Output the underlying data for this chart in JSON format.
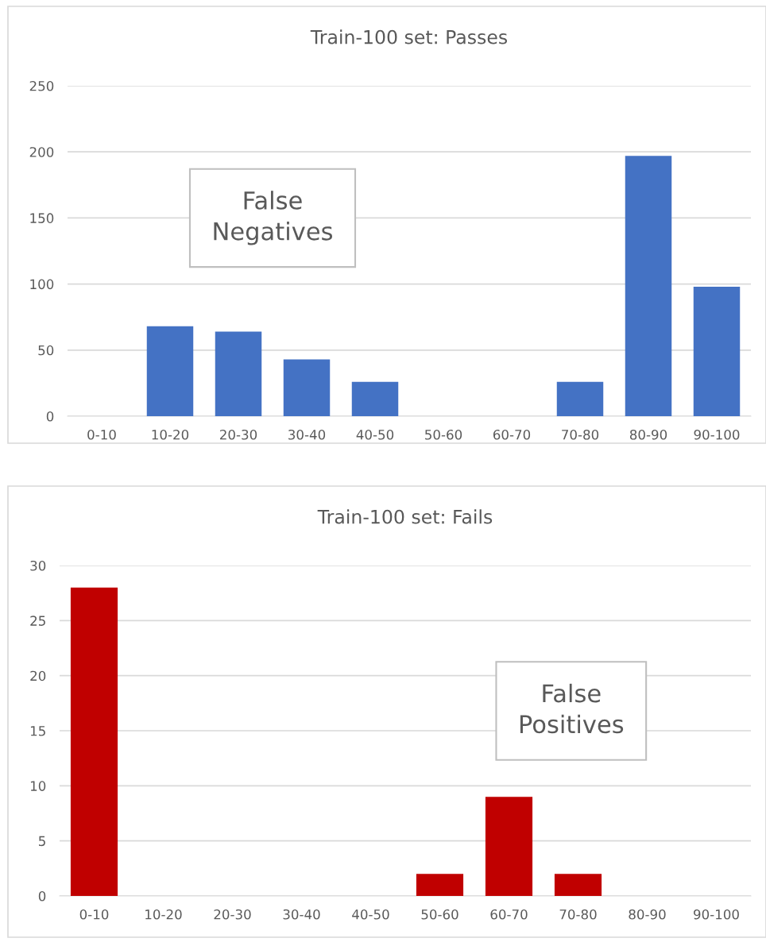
{
  "chart_data": [
    {
      "type": "bar",
      "title": "Train-100 set: Passes",
      "categories": [
        "0-10",
        "10-20",
        "20-30",
        "30-40",
        "40-50",
        "50-60",
        "60-70",
        "70-80",
        "80-90",
        "90-100"
      ],
      "values": [
        0,
        68,
        64,
        43,
        26,
        0,
        0,
        26,
        197,
        98
      ],
      "color": "#4472c4",
      "ylim": [
        0,
        250
      ],
      "yticks": [
        0,
        50,
        100,
        150,
        200,
        250
      ],
      "grid": "y",
      "annotations": [
        {
          "text": "False\nNegatives"
        }
      ]
    },
    {
      "type": "bar",
      "title": "Train-100 set: Fails",
      "categories": [
        "0-10",
        "10-20",
        "20-30",
        "30-40",
        "40-50",
        "50-60",
        "60-70",
        "70-80",
        "80-90",
        "90-100"
      ],
      "values": [
        28,
        0,
        0,
        0,
        0,
        2,
        9,
        2,
        0,
        0
      ],
      "color": "#c00000",
      "ylim": [
        0,
        30
      ],
      "yticks": [
        0,
        5,
        10,
        15,
        20,
        25,
        30
      ],
      "grid": "y",
      "annotations": [
        {
          "text": "False\nPositives"
        }
      ]
    }
  ]
}
